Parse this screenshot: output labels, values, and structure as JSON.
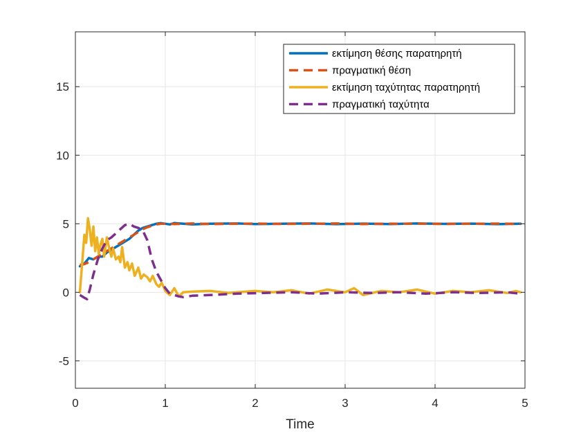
{
  "chart_data": {
    "type": "line",
    "title": "",
    "xlabel": "Time",
    "ylabel": "",
    "xlim": [
      0,
      5
    ],
    "ylim": [
      -7,
      19
    ],
    "xticks": [
      0,
      1,
      2,
      3,
      4,
      5
    ],
    "yticks": [
      -5,
      0,
      5,
      10,
      15
    ],
    "grid": true,
    "legend_position": "top-right",
    "series": [
      {
        "name": "εκτίμηση θέσης παρατηρητή",
        "color": "#0072BD",
        "style": "solid",
        "x": [
          0.05,
          0.1,
          0.15,
          0.2,
          0.25,
          0.3,
          0.35,
          0.4,
          0.45,
          0.5,
          0.55,
          0.6,
          0.65,
          0.7,
          0.75,
          0.8,
          0.85,
          0.9,
          0.95,
          1.0,
          1.05,
          1.1,
          1.2,
          1.3,
          1.5,
          1.8,
          2.0,
          2.3,
          2.6,
          2.9,
          3.2,
          3.5,
          3.8,
          4.1,
          4.4,
          4.7,
          4.95
        ],
        "values": [
          1.9,
          2.1,
          2.5,
          2.4,
          2.6,
          2.6,
          2.9,
          3.1,
          3.3,
          3.5,
          3.7,
          3.9,
          4.2,
          4.5,
          4.7,
          4.8,
          4.9,
          5.0,
          5.05,
          5.0,
          4.95,
          5.05,
          5.0,
          4.95,
          5.0,
          5.02,
          4.98,
          5.0,
          5.02,
          4.97,
          5.01,
          4.98,
          5.02,
          4.99,
          5.01,
          4.97,
          5.0
        ]
      },
      {
        "name": "πραγματική θέση",
        "color": "#D95319",
        "style": "dashed",
        "x": [
          0.05,
          0.1,
          0.15,
          0.2,
          0.25,
          0.3,
          0.35,
          0.4,
          0.45,
          0.5,
          0.55,
          0.6,
          0.65,
          0.7,
          0.75,
          0.8,
          0.85,
          0.9,
          0.95,
          1.0,
          1.05,
          1.1,
          1.2,
          1.3,
          1.5,
          1.8,
          2.0,
          2.3,
          2.6,
          2.9,
          3.2,
          3.5,
          3.8,
          4.1,
          4.4,
          4.7,
          4.95
        ],
        "values": [
          2.0,
          2.05,
          2.2,
          2.4,
          2.6,
          2.8,
          3.0,
          3.2,
          3.4,
          3.6,
          3.8,
          4.0,
          4.2,
          4.4,
          4.6,
          4.75,
          4.85,
          4.95,
          5.0,
          5.0,
          5.0,
          4.98,
          5.0,
          5.02,
          4.98,
          5.0,
          5.01,
          4.99,
          5.0,
          5.02,
          4.98,
          5.0,
          5.01,
          4.99,
          5.0,
          5.01,
          4.99
        ]
      },
      {
        "name": "εκτίμηση ταχύτητας παρατηρητή",
        "color": "#EDB120",
        "style": "solid",
        "x": [
          0.05,
          0.08,
          0.1,
          0.12,
          0.14,
          0.16,
          0.18,
          0.2,
          0.22,
          0.24,
          0.26,
          0.28,
          0.3,
          0.32,
          0.35,
          0.38,
          0.4,
          0.42,
          0.45,
          0.48,
          0.5,
          0.52,
          0.55,
          0.58,
          0.6,
          0.63,
          0.66,
          0.7,
          0.73,
          0.76,
          0.8,
          0.83,
          0.86,
          0.9,
          0.93,
          0.96,
          1.0,
          1.05,
          1.1,
          1.15,
          1.2,
          1.3,
          1.5,
          1.7,
          2.0,
          2.2,
          2.4,
          2.6,
          2.8,
          3.0,
          3.1,
          3.2,
          3.4,
          3.6,
          3.8,
          4.0,
          4.2,
          4.4,
          4.6,
          4.8,
          4.9,
          4.95
        ],
        "values": [
          0.0,
          2.5,
          4.2,
          3.6,
          5.4,
          4.6,
          3.4,
          4.8,
          3.0,
          4.0,
          2.8,
          3.5,
          3.9,
          2.6,
          4.0,
          3.1,
          2.6,
          3.2,
          2.4,
          2.6,
          2.2,
          3.3,
          1.8,
          2.2,
          1.6,
          2.1,
          1.2,
          1.8,
          1.0,
          1.3,
          1.1,
          0.8,
          1.2,
          0.6,
          0.4,
          0.7,
          0.1,
          -0.2,
          0.3,
          -0.3,
          0.0,
          0.05,
          0.1,
          -0.05,
          0.1,
          0.0,
          0.15,
          -0.1,
          0.2,
          0.0,
          0.3,
          -0.2,
          0.1,
          0.0,
          0.2,
          -0.1,
          0.1,
          0.0,
          0.15,
          -0.05,
          0.1,
          0.0
        ]
      },
      {
        "name": "πραγματική ταχύτητα",
        "color": "#7E2F8E",
        "style": "dashed",
        "x": [
          0.05,
          0.1,
          0.13,
          0.16,
          0.2,
          0.25,
          0.3,
          0.35,
          0.4,
          0.45,
          0.5,
          0.55,
          0.6,
          0.65,
          0.7,
          0.75,
          0.8,
          0.85,
          0.9,
          0.95,
          1.0,
          1.05,
          1.1,
          1.15,
          1.2,
          1.3,
          1.5,
          1.8,
          2.1,
          2.4,
          2.7,
          3.0,
          3.3,
          3.6,
          3.9,
          4.2,
          4.5,
          4.8,
          4.95
        ],
        "values": [
          -0.2,
          -0.4,
          -0.5,
          0.2,
          1.3,
          2.4,
          3.2,
          3.8,
          4.0,
          4.3,
          4.6,
          4.9,
          5.0,
          4.8,
          4.7,
          4.5,
          3.8,
          2.4,
          1.5,
          0.9,
          0.3,
          -0.1,
          -0.2,
          -0.3,
          -0.35,
          -0.25,
          -0.2,
          -0.1,
          -0.05,
          0.0,
          -0.1,
          0.0,
          -0.05,
          0.0,
          -0.1,
          0.0,
          -0.05,
          0.0,
          -0.1
        ]
      }
    ]
  }
}
